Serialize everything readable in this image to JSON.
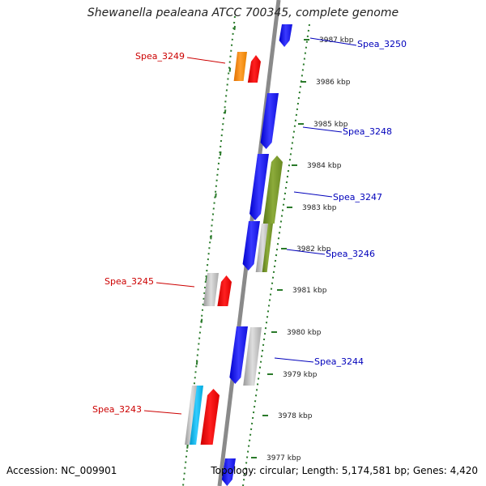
{
  "title": "Shewanella pealeana ATCC 700345, complete genome",
  "accession": "Accession: NC_009901",
  "summary": "Topology: circular; Length: 5,174,581 bp; Genes: 4,420",
  "colors": {
    "forward_label": "#cc0000",
    "reverse_label": "#0000bb",
    "tick": "#2a7a2a",
    "backbone": "#8a8a8a"
  },
  "scale_ticks": [
    "3987 kbp",
    "3986 kbp",
    "3985 kbp",
    "3984 kbp",
    "3983 kbp",
    "3982 kbp",
    "3981 kbp",
    "3980 kbp",
    "3979 kbp",
    "3978 kbp",
    "3977 kbp"
  ],
  "gene_labels": [
    {
      "text": "Spea_3250",
      "strand": "reverse"
    },
    {
      "text": "Spea_3249",
      "strand": "forward"
    },
    {
      "text": "Spea_3248",
      "strand": "reverse"
    },
    {
      "text": "Spea_3247",
      "strand": "reverse"
    },
    {
      "text": "Spea_3246",
      "strand": "reverse"
    },
    {
      "text": "Spea_3245",
      "strand": "forward"
    },
    {
      "text": "Spea_3244",
      "strand": "reverse"
    },
    {
      "text": "Spea_3243",
      "strand": "forward"
    }
  ]
}
